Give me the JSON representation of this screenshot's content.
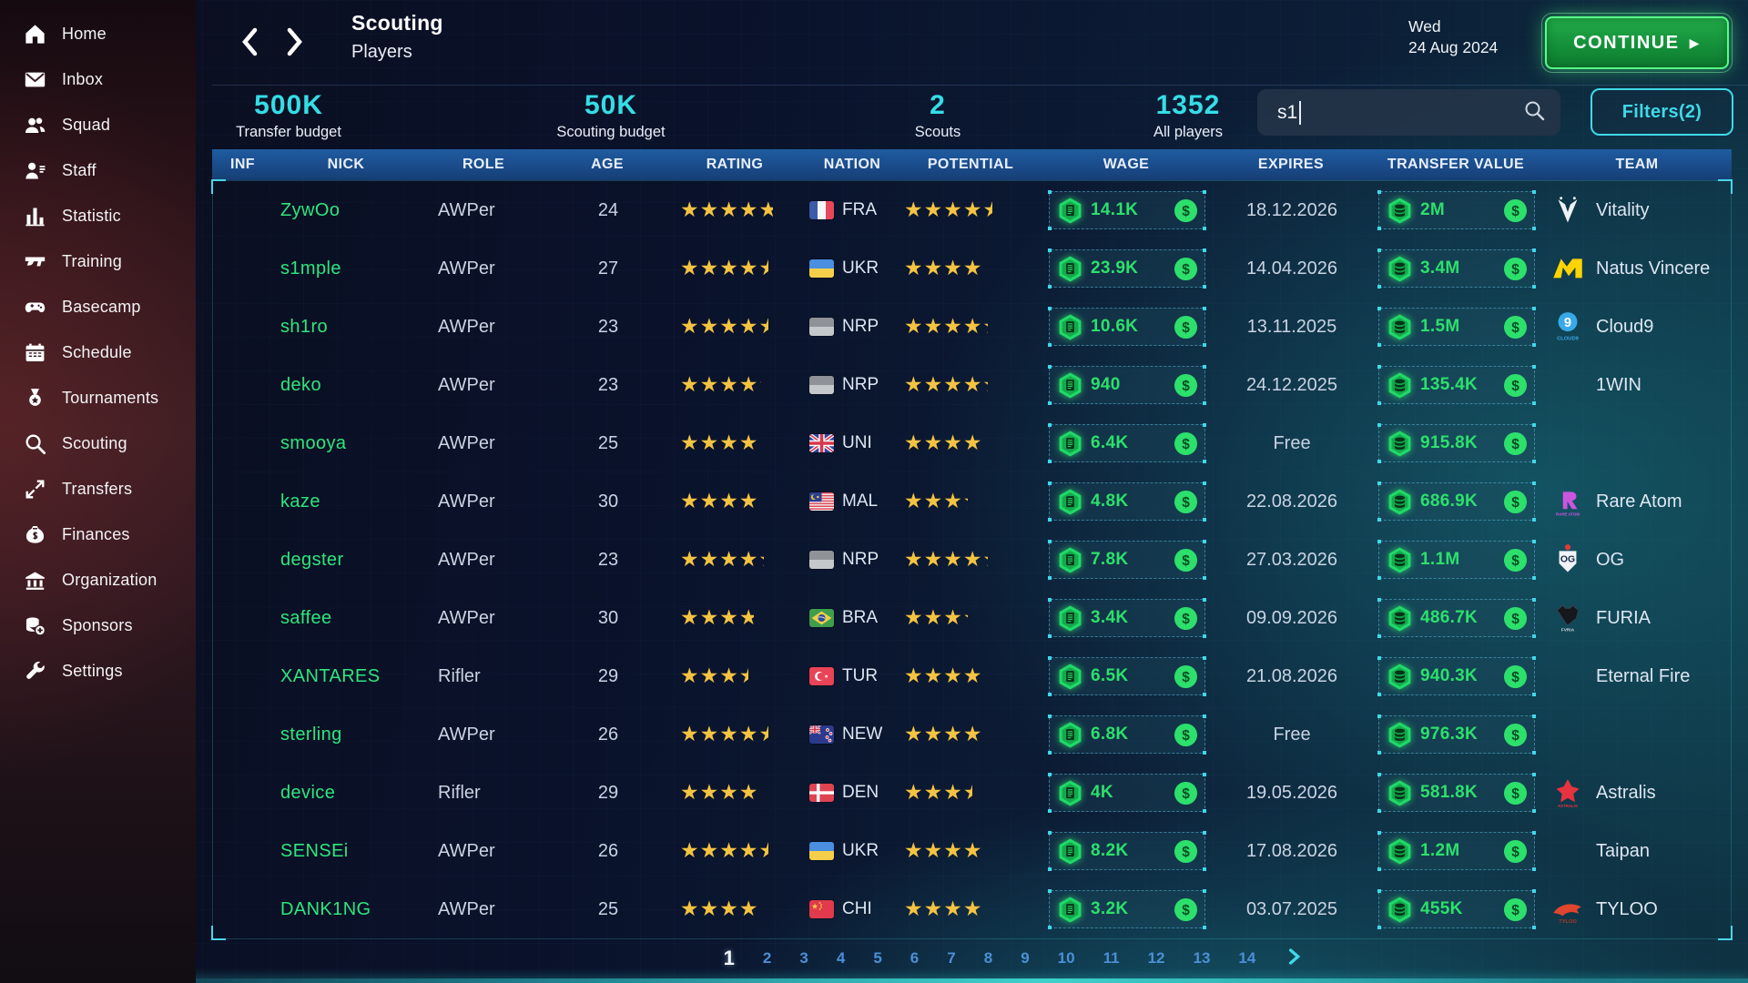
{
  "sidebar": {
    "items": [
      {
        "label": "Home",
        "icon": "home-icon"
      },
      {
        "label": "Inbox",
        "icon": "inbox-icon"
      },
      {
        "label": "Squad",
        "icon": "squad-icon"
      },
      {
        "label": "Staff",
        "icon": "staff-icon"
      },
      {
        "label": "Statistic",
        "icon": "statistic-icon"
      },
      {
        "label": "Training",
        "icon": "training-icon"
      },
      {
        "label": "Basecamp",
        "icon": "basecamp-icon"
      },
      {
        "label": "Schedule",
        "icon": "schedule-icon"
      },
      {
        "label": "Tournaments",
        "icon": "tournaments-icon"
      },
      {
        "label": "Scouting",
        "icon": "scouting-icon"
      },
      {
        "label": "Transfers",
        "icon": "transfers-icon"
      },
      {
        "label": "Finances",
        "icon": "finances-icon"
      },
      {
        "label": "Organization",
        "icon": "organization-icon"
      },
      {
        "label": "Sponsors",
        "icon": "sponsors-icon"
      },
      {
        "label": "Settings",
        "icon": "settings-icon"
      }
    ]
  },
  "header": {
    "title": "Scouting",
    "subtitle": "Players",
    "date_line1": "Wed",
    "date_line2": "24 Aug 2024",
    "continue_label": "CONTINUE"
  },
  "stats": [
    {
      "value": "500K",
      "label": "Transfer budget"
    },
    {
      "value": "50K",
      "label": "Scouting budget"
    },
    {
      "value": "2",
      "label": "Scouts"
    },
    {
      "value": "1352",
      "label": "All players"
    }
  ],
  "search": {
    "value": "s1",
    "icon": "search-icon"
  },
  "filters": {
    "label": "Filters(2)"
  },
  "table": {
    "columns": [
      "INF",
      "NICK",
      "ROLE",
      "AGE",
      "RATING",
      "NATION",
      "POTENTIAL",
      "WAGE",
      "EXPIRES",
      "TRANSFER VALUE",
      "TEAM"
    ],
    "rows": [
      {
        "nick": "ZywOo",
        "role": "AWPer",
        "age": "24",
        "rating": 4.75,
        "nation": "FRA",
        "potential": 4.5,
        "wage": "14.1K",
        "expires": "18.12.2026",
        "transfer_value": "2M",
        "team": "Vitality",
        "team_logo": "vitality"
      },
      {
        "nick": "s1mple",
        "role": "AWPer",
        "age": "27",
        "rating": 4.5,
        "nation": "UKR",
        "potential": 4.0,
        "wage": "23.9K",
        "expires": "14.04.2026",
        "transfer_value": "3.4M",
        "team": "Natus Vincere",
        "team_logo": "navi"
      },
      {
        "nick": "sh1ro",
        "role": "AWPer",
        "age": "23",
        "rating": 4.5,
        "nation": "NRP",
        "potential": 4.25,
        "wage": "10.6K",
        "expires": "13.11.2025",
        "transfer_value": "1.5M",
        "team": "Cloud9",
        "team_logo": "cloud9"
      },
      {
        "nick": "deko",
        "role": "AWPer",
        "age": "23",
        "rating": 4.1,
        "nation": "NRP",
        "potential": 4.25,
        "wage": "940",
        "expires": "24.12.2025",
        "transfer_value": "135.4K",
        "team": "1WIN",
        "team_logo": null
      },
      {
        "nick": "smooya",
        "role": "AWPer",
        "age": "25",
        "rating": 4.0,
        "nation": "UNI",
        "potential": 4.0,
        "wage": "6.4K",
        "expires": "Free",
        "transfer_value": "915.8K",
        "team": "",
        "team_logo": null
      },
      {
        "nick": "kaze",
        "role": "AWPer",
        "age": "30",
        "rating": 4.0,
        "nation": "MAL",
        "potential": 3.25,
        "wage": "4.8K",
        "expires": "22.08.2026",
        "transfer_value": "686.9K",
        "team": "Rare Atom",
        "team_logo": "rare-atom"
      },
      {
        "nick": "degster",
        "role": "AWPer",
        "age": "23",
        "rating": 4.25,
        "nation": "NRP",
        "potential": 4.25,
        "wage": "7.8K",
        "expires": "27.03.2026",
        "transfer_value": "1.1M",
        "team": "OG",
        "team_logo": "og"
      },
      {
        "nick": "saffee",
        "role": "AWPer",
        "age": "30",
        "rating": 3.75,
        "nation": "BRA",
        "potential": 3.25,
        "wage": "3.4K",
        "expires": "09.09.2026",
        "transfer_value": "486.7K",
        "team": "FURIA",
        "team_logo": "furia"
      },
      {
        "nick": "XANTARES",
        "role": "Rifler",
        "age": "29",
        "rating": 3.5,
        "nation": "TUR",
        "potential": 3.9,
        "wage": "6.5K",
        "expires": "21.08.2026",
        "transfer_value": "940.3K",
        "team": "Eternal Fire",
        "team_logo": null
      },
      {
        "nick": "sterling",
        "role": "AWPer",
        "age": "26",
        "rating": 4.5,
        "nation": "NEW",
        "potential": 4.0,
        "wage": "6.8K",
        "expires": "Free",
        "transfer_value": "976.3K",
        "team": "",
        "team_logo": null
      },
      {
        "nick": "device",
        "role": "Rifler",
        "age": "29",
        "rating": 4.0,
        "nation": "DEN",
        "potential": 3.5,
        "wage": "4K",
        "expires": "19.05.2026",
        "transfer_value": "581.8K",
        "team": "Astralis",
        "team_logo": "astralis"
      },
      {
        "nick": "SENSEi",
        "role": "AWPer",
        "age": "26",
        "rating": 4.5,
        "nation": "UKR",
        "potential": 4.0,
        "wage": "8.2K",
        "expires": "17.08.2026",
        "transfer_value": "1.2M",
        "team": "Taipan",
        "team_logo": null
      },
      {
        "nick": "DANK1NG",
        "role": "AWPer",
        "age": "25",
        "rating": 4.0,
        "nation": "CHI",
        "potential": 4.0,
        "wage": "3.2K",
        "expires": "03.07.2025",
        "transfer_value": "455K",
        "team": "TYLOO",
        "team_logo": "tyloo"
      }
    ]
  },
  "pagination": {
    "pages": [
      "1",
      "2",
      "3",
      "4",
      "5",
      "6",
      "7",
      "8",
      "9",
      "10",
      "11",
      "12",
      "13",
      "14"
    ],
    "current": "1"
  },
  "colors": {
    "accent_cyan": "#3fd9e8",
    "stat_cyan": "#35dde6",
    "money_green": "#2ce06b",
    "nick_green": "#2fe57d",
    "star_yellow": "#f4c341",
    "header_blue": "#1a4a88",
    "continue_green": "#14913a",
    "page_blue": "#4b8fd6"
  }
}
